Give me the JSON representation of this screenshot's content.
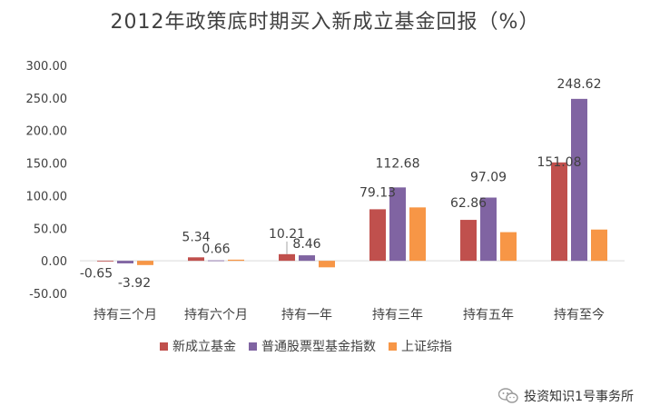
{
  "chart_data": {
    "type": "bar",
    "title": "2012年政策底时期买入新成立基金回报（%）",
    "categories": [
      "持有三个月",
      "持有六个月",
      "持有一年",
      "持有三年",
      "持有五年",
      "持有至今"
    ],
    "series": [
      {
        "name": "新成立基金",
        "color": "#C0504D",
        "values": [
          -0.65,
          5.34,
          10.21,
          79.13,
          62.86,
          151.08
        ]
      },
      {
        "name": "普通股票型基金指数",
        "color": "#8064A2",
        "values": [
          -3.92,
          0.66,
          8.46,
          112.68,
          97.09,
          248.62
        ]
      },
      {
        "name": "上证综指",
        "color": "#F79646",
        "values": [
          -6.5,
          1.8,
          -10.0,
          82.0,
          44.0,
          48.0
        ]
      }
    ],
    "data_labels": [
      {
        "series": 0,
        "index": 0,
        "text": "-0.65"
      },
      {
        "series": 1,
        "index": 0,
        "text": "-3.92"
      },
      {
        "series": 0,
        "index": 1,
        "text": "5.34"
      },
      {
        "series": 1,
        "index": 1,
        "text": "0.66"
      },
      {
        "series": 0,
        "index": 2,
        "text": "10.21"
      },
      {
        "series": 1,
        "index": 2,
        "text": "8.46"
      },
      {
        "series": 0,
        "index": 3,
        "text": "79.13"
      },
      {
        "series": 1,
        "index": 3,
        "text": "112.68"
      },
      {
        "series": 0,
        "index": 4,
        "text": "62.86"
      },
      {
        "series": 1,
        "index": 4,
        "text": "97.09"
      },
      {
        "series": 0,
        "index": 5,
        "text": "151.08"
      },
      {
        "series": 1,
        "index": 5,
        "text": "248.62"
      }
    ],
    "yticks": [
      "300.00",
      "250.00",
      "200.00",
      "150.00",
      "100.00",
      "50.00",
      "0.00",
      "-50.00"
    ],
    "ylim": [
      -50,
      300
    ],
    "grid": false,
    "legend_position": "bottom"
  },
  "watermark": {
    "text": "投资知识1号事务所",
    "icon": "wechat-icon"
  }
}
